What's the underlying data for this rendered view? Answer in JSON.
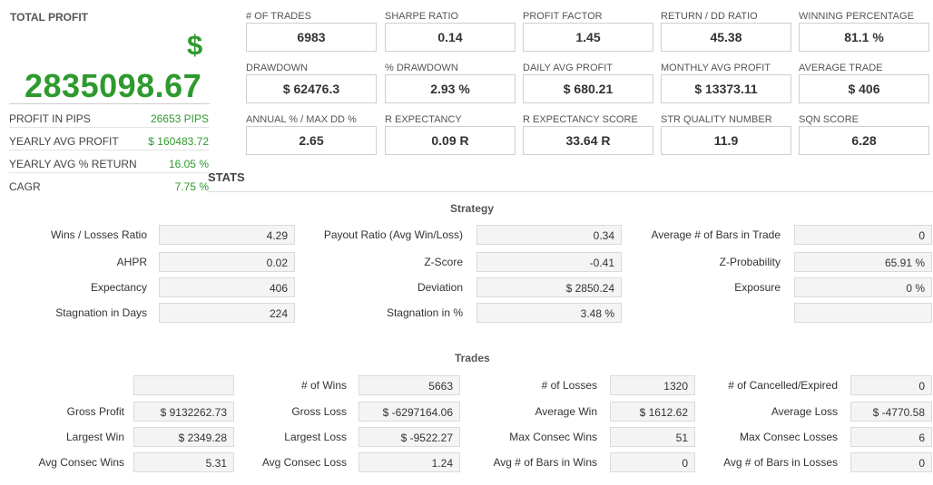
{
  "total_profit": {
    "label": "TOTAL PROFIT",
    "currency_symbol": "$",
    "value": "2835098.67",
    "stats": [
      {
        "label": "PROFIT IN PIPS",
        "value": "26653 PIPS"
      },
      {
        "label": "YEARLY AVG PROFIT",
        "value": "$ 160483.72"
      },
      {
        "label": "YEARLY AVG % RETURN",
        "value": "16.05 %"
      },
      {
        "label": "CAGR",
        "value": "7.75 %"
      }
    ]
  },
  "metrics": [
    [
      {
        "label": "# OF TRADES",
        "value": "6983"
      },
      {
        "label": "SHARPE RATIO",
        "value": "0.14"
      },
      {
        "label": "PROFIT FACTOR",
        "value": "1.45"
      },
      {
        "label": "RETURN / DD RATIO",
        "value": "45.38"
      },
      {
        "label": "WINNING PERCENTAGE",
        "value": "81.1 %"
      }
    ],
    [
      {
        "label": "DRAWDOWN",
        "value": "$ 62476.3"
      },
      {
        "label": "% DRAWDOWN",
        "value": "2.93 %"
      },
      {
        "label": "DAILY AVG PROFIT",
        "value": "$ 680.21"
      },
      {
        "label": "MONTHLY AVG PROFIT",
        "value": "$ 13373.11"
      },
      {
        "label": "AVERAGE TRADE",
        "value": "$ 406"
      }
    ],
    [
      {
        "label": "ANNUAL % / MAX DD %",
        "value": "2.65"
      },
      {
        "label": "R EXPECTANCY",
        "value": "0.09 R"
      },
      {
        "label": "R EXPECTANCY SCORE",
        "value": "33.64 R"
      },
      {
        "label": "STR QUALITY NUMBER",
        "value": "11.9"
      },
      {
        "label": "SQN SCORE",
        "value": "6.28"
      }
    ]
  ],
  "stats_title": "STATS",
  "strategy": {
    "title": "Strategy",
    "rows": [
      [
        {
          "label": "Wins / Losses Ratio",
          "value": "4.29"
        },
        {
          "label": "Payout Ratio (Avg Win/Loss)",
          "value": "0.34"
        },
        {
          "label": "Average # of Bars in Trade",
          "value": "0"
        }
      ],
      [
        {
          "label": "AHPR",
          "value": "0.02"
        },
        {
          "label": "Z-Score",
          "value": "-0.41"
        },
        {
          "label": "Z-Probability",
          "value": "65.91 %"
        }
      ],
      [
        {
          "label": "Expectancy",
          "value": "406"
        },
        {
          "label": "Deviation",
          "value": "$ 2850.24"
        },
        {
          "label": "Exposure",
          "value": "0 %"
        }
      ],
      [
        {
          "label": "Stagnation in Days",
          "value": "224"
        },
        {
          "label": "Stagnation in %",
          "value": "3.48 %"
        },
        {
          "label": "",
          "value": ""
        }
      ]
    ]
  },
  "trades": {
    "title": "Trades",
    "rows": [
      [
        {
          "label": "",
          "value": ""
        },
        {
          "label": "# of Wins",
          "value": "5663"
        },
        {
          "label": "# of Losses",
          "value": "1320"
        },
        {
          "label": "# of Cancelled/Expired",
          "value": "0"
        }
      ],
      [
        {
          "label": "Gross Profit",
          "value": "$ 9132262.73"
        },
        {
          "label": "Gross Loss",
          "value": "$ -6297164.06"
        },
        {
          "label": "Average Win",
          "value": "$ 1612.62"
        },
        {
          "label": "Average Loss",
          "value": "$ -4770.58"
        }
      ],
      [
        {
          "label": "Largest Win",
          "value": "$ 2349.28"
        },
        {
          "label": "Largest Loss",
          "value": "$ -9522.27"
        },
        {
          "label": "Max Consec Wins",
          "value": "51"
        },
        {
          "label": "Max Consec Losses",
          "value": "6"
        }
      ],
      [
        {
          "label": "Avg Consec Wins",
          "value": "5.31"
        },
        {
          "label": "Avg Consec Loss",
          "value": "1.24"
        },
        {
          "label": "Avg # of Bars in Wins",
          "value": "0"
        },
        {
          "label": "Avg # of Bars in Losses",
          "value": "0"
        }
      ]
    ]
  },
  "colors": {
    "profit_green": "#2e9a2e",
    "cell_bg": "#f4f4f4",
    "border": "#cfcfcf"
  }
}
